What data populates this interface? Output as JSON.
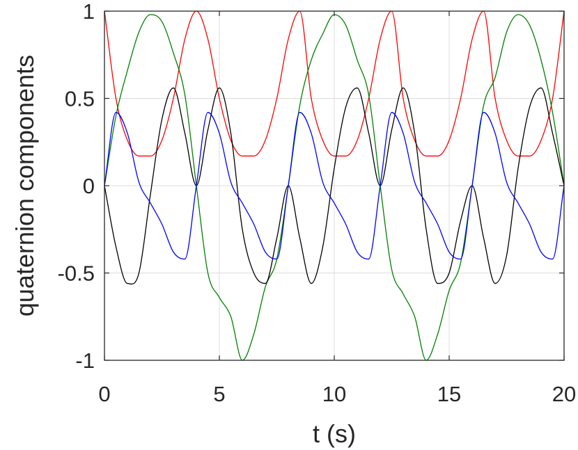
{
  "chart_data": {
    "type": "line",
    "title": "",
    "xlabel": "t (s)",
    "ylabel": "quaternion components",
    "xlim": [
      0,
      20
    ],
    "ylim": [
      -1,
      1
    ],
    "grid": true,
    "legend": "none",
    "xticks": [
      0,
      5,
      10,
      15,
      20
    ],
    "xtick_labels": [
      "0",
      "5",
      "10",
      "15",
      "20"
    ],
    "yticks": [
      -1,
      -0.5,
      0,
      0.5,
      1
    ],
    "ytick_labels": [
      "-1",
      "-0.5",
      "0",
      "0.5",
      "1"
    ],
    "x": [
      0,
      0.5,
      1,
      1.5,
      2,
      2.5,
      3,
      3.5,
      4,
      4.5,
      5,
      5.5,
      6,
      6.5,
      7,
      7.5,
      8,
      8.5,
      9,
      9.5,
      10,
      10.5,
      11,
      11.5,
      12,
      12.5,
      13,
      13.5,
      14,
      14.5,
      15,
      15.5,
      16,
      16.5,
      17,
      17.5,
      18,
      18.5,
      19,
      19.5,
      20
    ],
    "series": [
      {
        "color": "#ff0000",
        "values": [
          1.0,
          0.5,
          0.26,
          0.17,
          0.17,
          0.26,
          0.5,
          0.84,
          1.0,
          0.84,
          0.5,
          0.26,
          0.17,
          0.17,
          0.26,
          0.5,
          0.84,
          1.0,
          0.5,
          0.26,
          0.17,
          0.17,
          0.26,
          0.5,
          0.84,
          1.0,
          0.5,
          0.26,
          0.17,
          0.17,
          0.26,
          0.5,
          0.84,
          1.0,
          0.5,
          0.26,
          0.17,
          0.17,
          0.26,
          0.5,
          1.0
        ]
      },
      {
        "color": "#008000",
        "values": [
          0.0,
          0.4,
          0.66,
          0.88,
          0.98,
          0.94,
          0.76,
          0.52,
          0.0,
          -0.5,
          -0.64,
          -0.75,
          -1.0,
          -0.85,
          -0.58,
          -0.42,
          0.0,
          0.46,
          0.72,
          0.87,
          0.98,
          0.92,
          0.72,
          0.52,
          0.0,
          -0.48,
          -0.62,
          -0.75,
          -1.0,
          -0.85,
          -0.6,
          -0.44,
          0.0,
          0.46,
          0.62,
          0.88,
          0.98,
          0.92,
          0.72,
          0.42,
          0.0
        ]
      },
      {
        "color": "#000000",
        "values": [
          0.0,
          -0.35,
          -0.56,
          -0.5,
          -0.05,
          0.38,
          0.56,
          0.3,
          0.0,
          0.32,
          0.56,
          0.3,
          -0.25,
          -0.5,
          -0.56,
          -0.3,
          0.0,
          -0.3,
          -0.56,
          -0.35,
          0.1,
          0.45,
          0.56,
          0.3,
          0.0,
          0.32,
          0.56,
          0.3,
          -0.25,
          -0.56,
          -0.5,
          -0.2,
          0.0,
          -0.3,
          -0.56,
          -0.4,
          0.1,
          0.45,
          0.56,
          0.3,
          0.0
        ]
      },
      {
        "color": "#0000ff",
        "values": [
          0.0,
          0.42,
          0.3,
          0.02,
          -0.1,
          -0.22,
          -0.38,
          -0.42,
          0.0,
          0.42,
          0.3,
          0.02,
          -0.1,
          -0.22,
          -0.38,
          -0.42,
          0.0,
          0.42,
          0.3,
          0.02,
          -0.1,
          -0.22,
          -0.38,
          -0.42,
          0.0,
          0.42,
          0.3,
          0.02,
          -0.1,
          -0.22,
          -0.38,
          -0.42,
          0.0,
          0.42,
          0.3,
          0.02,
          -0.1,
          -0.22,
          -0.38,
          -0.42,
          0.0
        ]
      }
    ]
  }
}
